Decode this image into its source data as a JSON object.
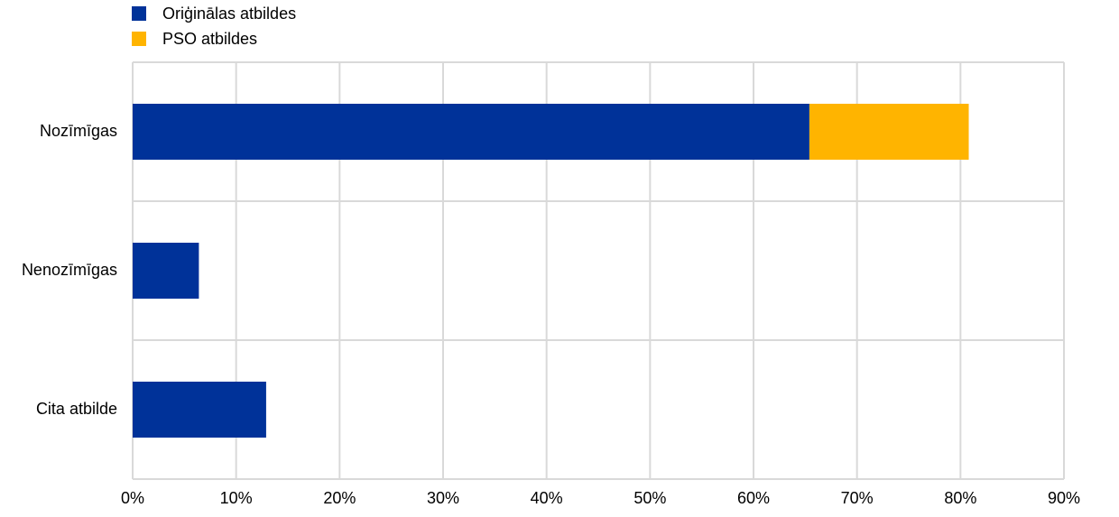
{
  "chart_data": {
    "type": "stacked-bar",
    "orientation": "horizontal",
    "categories": [
      "Nozīmīgas",
      "Nenozīmīgas",
      "Cita atbilde"
    ],
    "series": [
      {
        "name": "Oriģinālas atbildes",
        "color": "#003299",
        "values": [
          65.4,
          6.4,
          12.9
        ]
      },
      {
        "name": "PSO atbildes",
        "color": "#ffb400",
        "values": [
          15.4,
          null,
          null
        ]
      }
    ],
    "xlim": [
      0,
      90
    ],
    "xticks": [
      {
        "value": 0,
        "label": "0%"
      },
      {
        "value": 10,
        "label": "10%"
      },
      {
        "value": 20,
        "label": "20%"
      },
      {
        "value": 30,
        "label": "30%"
      },
      {
        "value": 40,
        "label": "40%"
      },
      {
        "value": 50,
        "label": "50%"
      },
      {
        "value": 60,
        "label": "60%"
      },
      {
        "value": 70,
        "label": "70%"
      },
      {
        "value": 80,
        "label": "80%"
      },
      {
        "value": 90,
        "label": "90%"
      }
    ],
    "grid": true,
    "legend": "top-left"
  }
}
